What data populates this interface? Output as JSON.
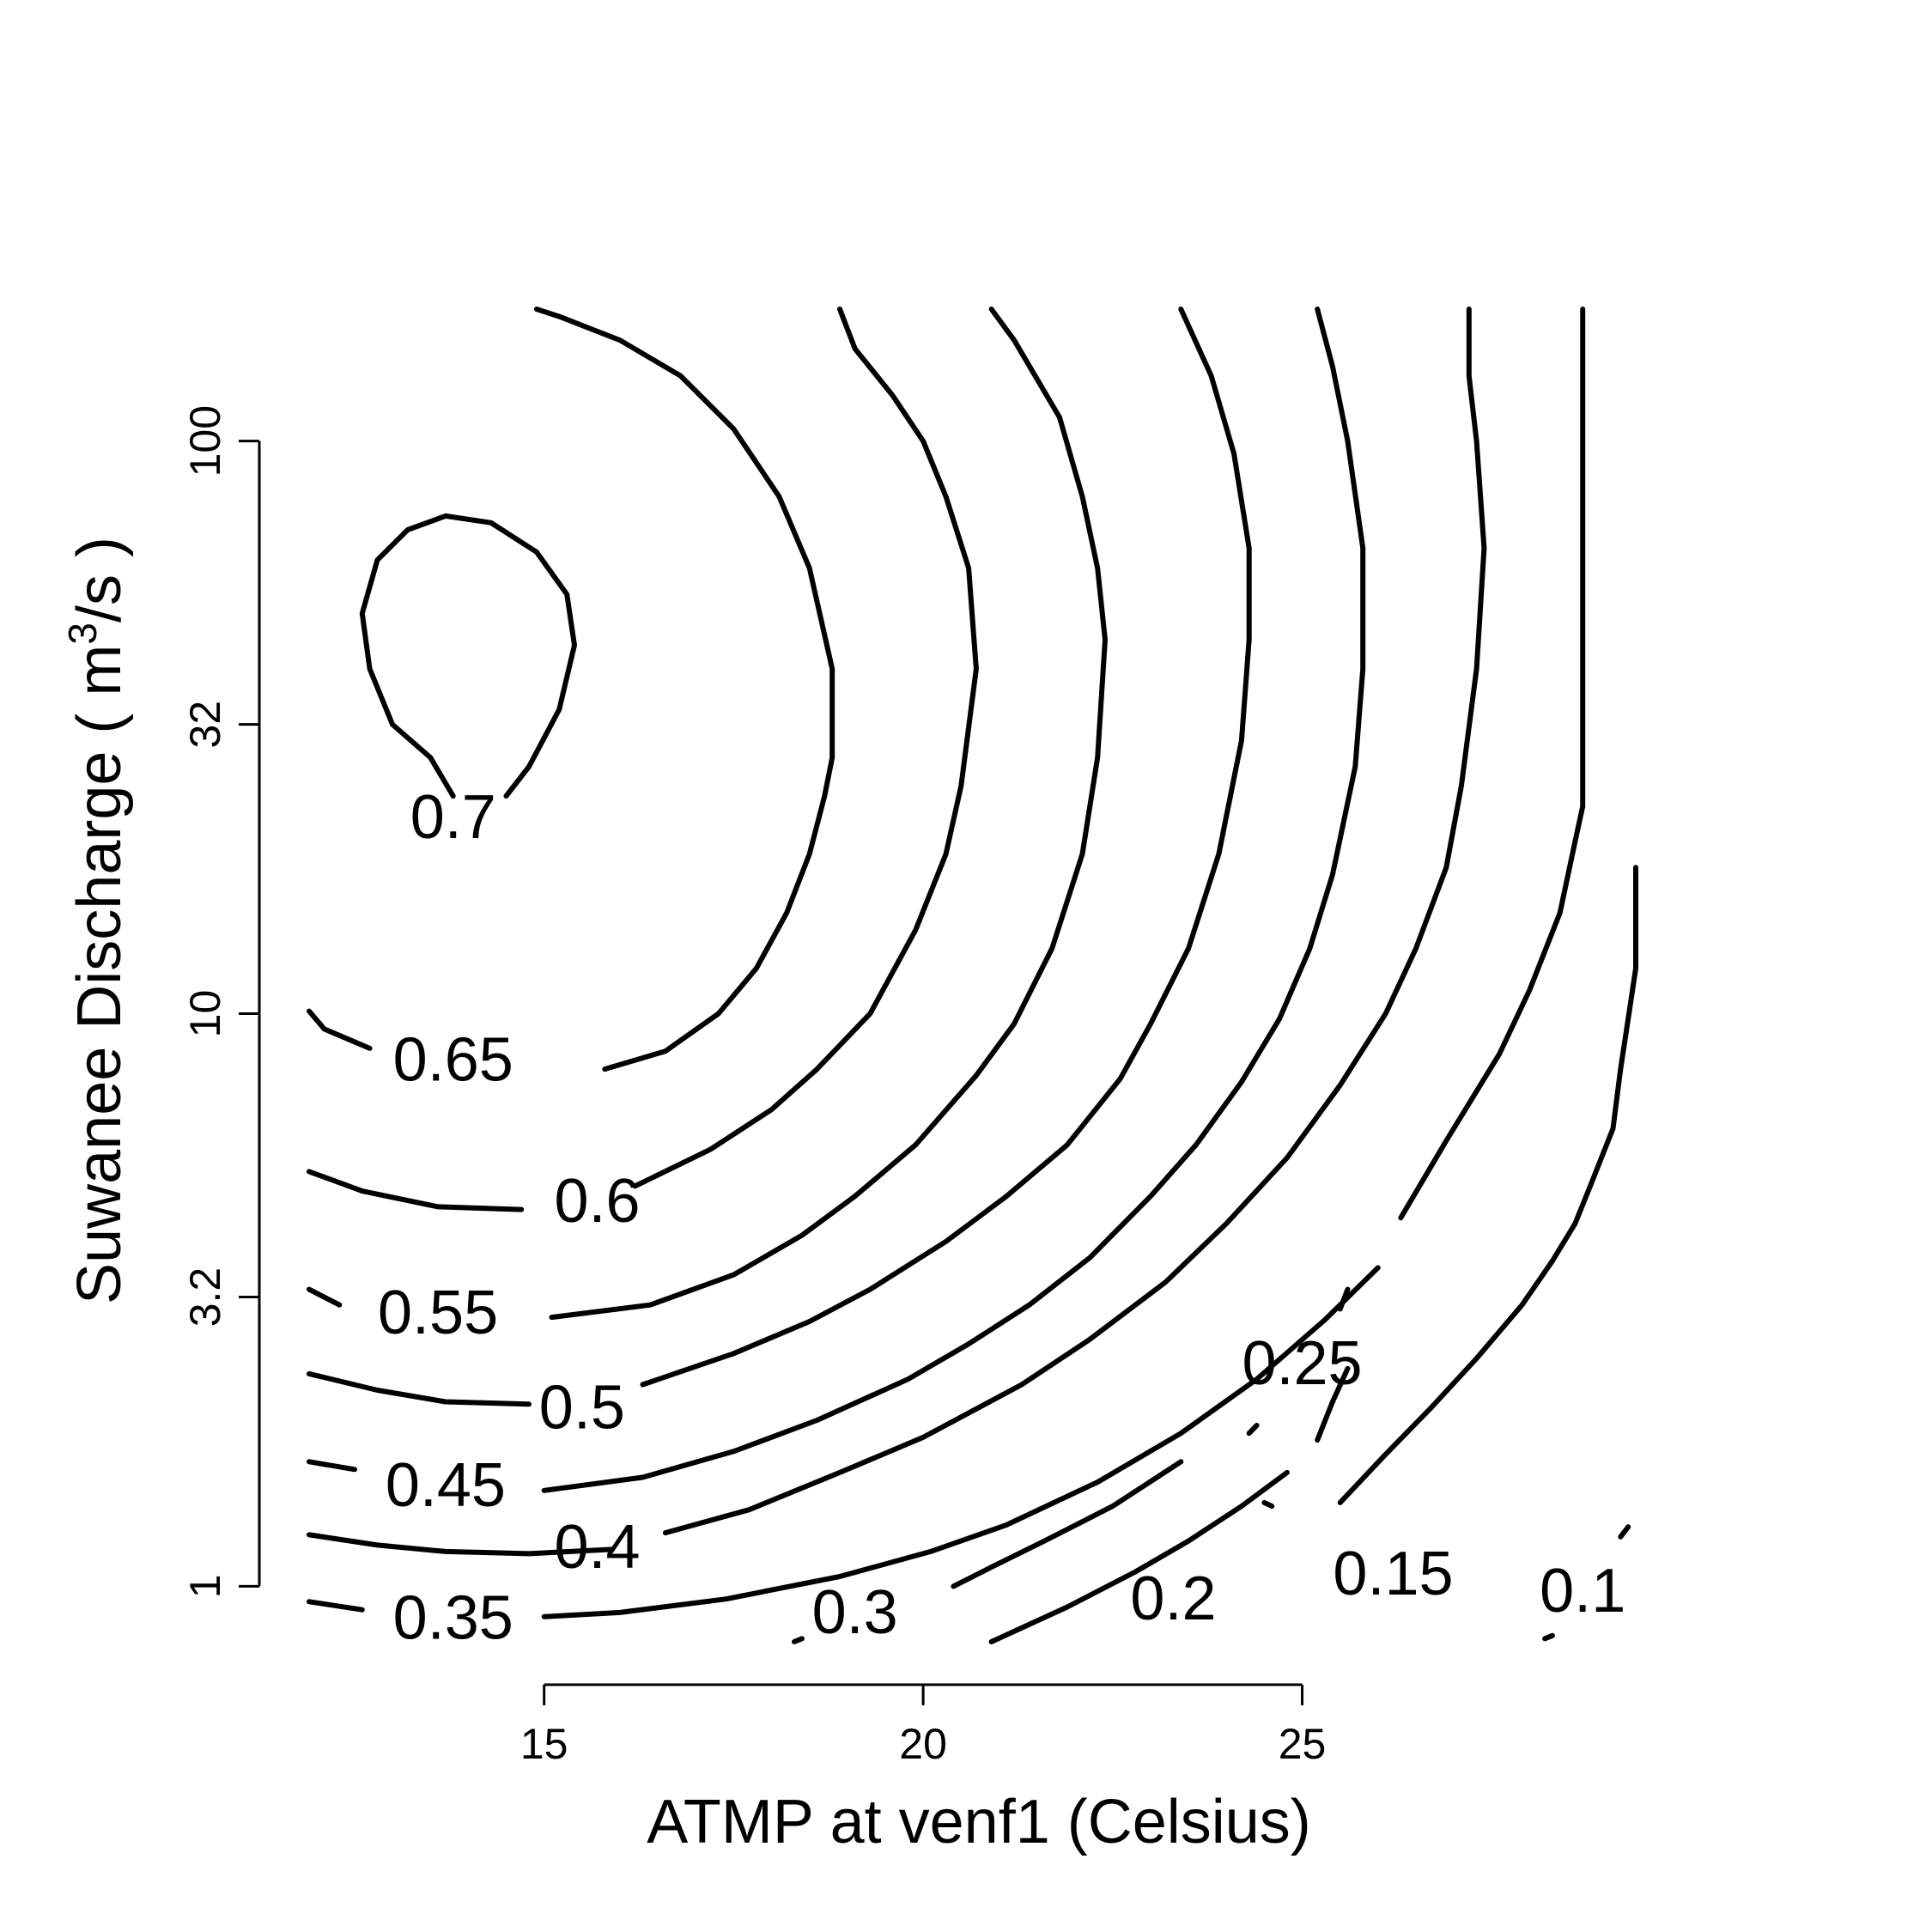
{
  "chart_data": {
    "type": "contour",
    "xlabel": "ATMP at venf1 (Celsius)",
    "ylabel": "Suwanee Discharge ( m",
    "ylabel_sup": "3",
    "ylabel_tail": "/s )",
    "xlim": [
      11.9,
      29.4
    ],
    "ylim": [
      0.8,
      170
    ],
    "y_scale": "log",
    "x_ticks": [
      {
        "value": 15,
        "label": "15"
      },
      {
        "value": 20,
        "label": "20"
      },
      {
        "value": 25,
        "label": "25"
      }
    ],
    "y_ticks": [
      {
        "value": 1,
        "label": "1"
      },
      {
        "value": 3.2,
        "label": "3.2"
      },
      {
        "value": 10,
        "label": "10"
      },
      {
        "value": 32,
        "label": "32"
      },
      {
        "value": 100,
        "label": "100"
      }
    ],
    "grid": false,
    "contours": [
      {
        "level": "0.7",
        "label": "0.7",
        "label_pos": [
          13.8,
          22
        ],
        "segments": [
          [
            [
              13.8,
              24
            ],
            [
              13.5,
              28
            ],
            [
              13.0,
              32
            ],
            [
              12.7,
              40
            ],
            [
              12.6,
              50
            ],
            [
              12.8,
              62
            ],
            [
              13.2,
              70
            ],
            [
              13.7,
              74
            ],
            [
              14.3,
              72
            ],
            [
              14.9,
              64
            ],
            [
              15.3,
              54
            ],
            [
              15.4,
              44
            ],
            [
              15.2,
              34
            ],
            [
              14.8,
              27
            ],
            [
              14.5,
              24
            ]
          ]
        ]
      },
      {
        "level": "0.65",
        "label": "0.65",
        "label_pos": [
          13.8,
          8.3
        ],
        "segments": [
          [
            [
              11.9,
              10.1
            ],
            [
              12.1,
              9.4
            ],
            [
              12.7,
              8.7
            ]
          ],
          [
            [
              15.8,
              8.0
            ],
            [
              16.6,
              8.6
            ],
            [
              17.3,
              10.0
            ],
            [
              17.8,
              12.0
            ],
            [
              18.2,
              15.0
            ],
            [
              18.5,
              19.0
            ],
            [
              18.7,
              24.0
            ],
            [
              18.8,
              28.0
            ],
            [
              18.8,
              40.0
            ],
            [
              18.5,
              60.0
            ],
            [
              18.1,
              80.0
            ],
            [
              17.5,
              105.0
            ],
            [
              16.8,
              130.0
            ],
            [
              16.0,
              150.0
            ],
            [
              15.2,
              165.0
            ],
            [
              14.9,
              170.0
            ]
          ]
        ]
      },
      {
        "level": "0.6",
        "label": "0.6",
        "label_pos": [
          15.7,
          4.7
        ],
        "segments": [
          [
            [
              11.9,
              5.3
            ],
            [
              12.6,
              4.9
            ],
            [
              13.6,
              4.6
            ],
            [
              14.7,
              4.55
            ]
          ],
          [
            [
              16.2,
              5.0
            ],
            [
              17.2,
              5.8
            ],
            [
              18.0,
              6.8
            ],
            [
              18.6,
              8.0
            ],
            [
              19.3,
              10.0
            ],
            [
              19.9,
              14.0
            ],
            [
              20.3,
              19.0
            ],
            [
              20.5,
              25.0
            ],
            [
              20.7,
              40.0
            ],
            [
              20.6,
              60.0
            ],
            [
              20.3,
              80.0
            ],
            [
              20.0,
              100.0
            ],
            [
              19.6,
              120.0
            ],
            [
              19.1,
              145.0
            ],
            [
              18.9,
              170.0
            ]
          ]
        ]
      },
      {
        "level": "0.55",
        "label": "0.55",
        "label_pos": [
          13.6,
          3.0
        ],
        "segments": [
          [
            [
              11.9,
              3.3
            ],
            [
              12.3,
              3.1
            ]
          ],
          [
            [
              15.1,
              2.95
            ],
            [
              16.4,
              3.1
            ],
            [
              17.5,
              3.5
            ],
            [
              18.4,
              4.1
            ],
            [
              19.1,
              4.8
            ],
            [
              19.9,
              5.9
            ],
            [
              20.7,
              7.8
            ],
            [
              21.2,
              9.6
            ],
            [
              21.7,
              13.0
            ],
            [
              22.1,
              19.0
            ],
            [
              22.3,
              28.0
            ],
            [
              22.4,
              45.0
            ],
            [
              22.3,
              60.0
            ],
            [
              22.1,
              80.0
            ],
            [
              21.8,
              110.0
            ],
            [
              21.2,
              150.0
            ],
            [
              20.9,
              170.0
            ]
          ]
        ]
      },
      {
        "level": "0.5",
        "label": "0.5",
        "label_pos": [
          15.5,
          2.05
        ],
        "segments": [
          [
            [
              11.9,
              2.35
            ],
            [
              12.8,
              2.2
            ],
            [
              13.7,
              2.1
            ],
            [
              14.8,
              2.08
            ]
          ],
          [
            [
              16.3,
              2.25
            ],
            [
              17.5,
              2.55
            ],
            [
              18.5,
              2.9
            ],
            [
              19.3,
              3.3
            ],
            [
              20.3,
              4.0
            ],
            [
              21.1,
              4.8
            ],
            [
              21.9,
              5.9
            ],
            [
              22.6,
              7.7
            ],
            [
              23.0,
              9.6
            ],
            [
              23.5,
              13.0
            ],
            [
              23.9,
              19.0
            ],
            [
              24.2,
              30.0
            ],
            [
              24.3,
              45.0
            ],
            [
              24.3,
              65.0
            ],
            [
              24.1,
              95.0
            ],
            [
              23.8,
              130.0
            ],
            [
              23.4,
              170.0
            ]
          ]
        ]
      },
      {
        "level": "0.45",
        "label": "0.45",
        "label_pos": [
          13.7,
          1.5
        ],
        "segments": [
          [
            [
              11.9,
              1.65
            ],
            [
              12.5,
              1.6
            ]
          ],
          [
            [
              15.0,
              1.47
            ],
            [
              16.3,
              1.55
            ],
            [
              17.5,
              1.72
            ],
            [
              18.6,
              1.95
            ],
            [
              19.8,
              2.3
            ],
            [
              20.6,
              2.65
            ],
            [
              21.4,
              3.1
            ],
            [
              22.2,
              3.75
            ],
            [
              23.0,
              4.8
            ],
            [
              23.6,
              5.9
            ],
            [
              24.2,
              7.6
            ],
            [
              24.7,
              9.8
            ],
            [
              25.1,
              13.0
            ],
            [
              25.4,
              17.5
            ],
            [
              25.7,
              27.0
            ],
            [
              25.8,
              40.0
            ],
            [
              25.8,
              65.0
            ],
            [
              25.6,
              100.0
            ],
            [
              25.4,
              135.0
            ],
            [
              25.2,
              170.0
            ]
          ]
        ]
      },
      {
        "level": "0.4",
        "label": "0.4",
        "label_pos": [
          15.7,
          1.17
        ],
        "segments": [
          [
            [
              11.9,
              1.23
            ],
            [
              12.8,
              1.18
            ],
            [
              13.7,
              1.15
            ],
            [
              14.8,
              1.14
            ],
            [
              15.9,
              1.16
            ]
          ],
          [
            [
              16.6,
              1.24
            ],
            [
              17.7,
              1.36
            ],
            [
              18.9,
              1.58
            ],
            [
              20.0,
              1.82
            ],
            [
              21.3,
              2.25
            ],
            [
              22.2,
              2.7
            ],
            [
              23.2,
              3.4
            ],
            [
              24.0,
              4.3
            ],
            [
              24.8,
              5.6
            ],
            [
              25.5,
              7.5
            ],
            [
              26.1,
              10.0
            ],
            [
              26.5,
              13.0
            ],
            [
              26.9,
              18.0
            ],
            [
              27.1,
              25.0
            ],
            [
              27.3,
              40.0
            ],
            [
              27.4,
              65.0
            ],
            [
              27.3,
              100.0
            ],
            [
              27.2,
              130.0
            ],
            [
              27.2,
              170.0
            ]
          ]
        ]
      },
      {
        "level": "0.35",
        "label": "0.35",
        "label_pos": [
          13.8,
          0.88
        ],
        "segments": [
          [
            [
              11.9,
              0.94
            ],
            [
              12.6,
              0.91
            ]
          ],
          [
            [
              15.0,
              0.885
            ],
            [
              16.0,
              0.9
            ],
            [
              17.4,
              0.95
            ],
            [
              18.9,
              1.04
            ],
            [
              20.1,
              1.15
            ],
            [
              21.1,
              1.28
            ],
            [
              22.3,
              1.52
            ],
            [
              23.4,
              1.85
            ],
            [
              24.4,
              2.3
            ],
            [
              25.3,
              2.92
            ],
            [
              26.0,
              3.6
            ]
          ],
          [
            [
              26.3,
              4.4
            ],
            [
              26.9,
              6.0
            ],
            [
              27.6,
              8.5
            ],
            [
              28.0,
              11.0
            ],
            [
              28.4,
              15.0
            ],
            [
              28.6,
              20.0
            ],
            [
              28.7,
              23.0
            ],
            [
              28.7,
              60.0
            ],
            [
              28.7,
              100.0
            ],
            [
              28.7,
              130.0
            ],
            [
              28.7,
              170.0
            ]
          ]
        ]
      },
      {
        "level": "0.3",
        "label": "0.3",
        "label_pos": [
          19.1,
          0.9
        ],
        "segments": [
          [
            [
              18.3,
              0.8
            ],
            [
              18.4,
              0.81
            ]
          ],
          [
            [
              20.4,
              1.0
            ],
            [
              20.9,
              1.08
            ],
            [
              21.6,
              1.2
            ],
            [
              22.5,
              1.38
            ],
            [
              23.4,
              1.65
            ]
          ]
        ]
      },
      {
        "level": "0.25",
        "label": "0.25",
        "label_pos": [
          25.0,
          2.45
        ],
        "segments": [
          [
            [
              24.3,
              1.85
            ],
            [
              24.4,
              1.91
            ]
          ],
          [
            [
              25.5,
              3.05
            ],
            [
              25.6,
              3.3
            ]
          ]
        ]
      },
      {
        "level": "0.2",
        "label": "0.2",
        "label_pos": [
          23.3,
          0.95
        ],
        "segments": [
          [
            [
              20.9,
              0.8
            ],
            [
              21.9,
              0.92
            ],
            [
              22.8,
              1.06
            ],
            [
              23.5,
              1.2
            ],
            [
              24.2,
              1.38
            ],
            [
              24.8,
              1.58
            ]
          ],
          [
            [
              24.6,
              1.38
            ],
            [
              24.5,
              1.4
            ]
          ],
          [
            [
              25.2,
              1.8
            ],
            [
              25.4,
              2.1
            ],
            [
              25.6,
              2.4
            ]
          ]
        ]
      },
      {
        "level": "0.15",
        "label": "0.15",
        "label_pos": [
          26.2,
          1.05
        ],
        "segments": [
          [
            [
              25.5,
              1.4
            ],
            [
              26.1,
              1.7
            ],
            [
              26.7,
              2.05
            ],
            [
              27.3,
              2.5
            ],
            [
              27.9,
              3.1
            ],
            [
              28.3,
              3.7
            ],
            [
              28.6,
              4.3
            ],
            [
              28.8,
              5.0
            ],
            [
              29.1,
              6.3
            ],
            [
              29.2,
              8.0
            ],
            [
              29.3,
              9.8
            ],
            [
              29.4,
              12.0
            ],
            [
              29.4,
              15.0
            ],
            [
              29.4,
              18.0
            ]
          ]
        ]
      },
      {
        "level": "0.1",
        "label": "0.1",
        "label_pos": [
          28.7,
          0.98
        ],
        "segments": [
          [
            [
              28.2,
              0.81
            ],
            [
              28.3,
              0.82
            ]
          ],
          [
            [
              29.2,
              1.22
            ],
            [
              29.3,
              1.27
            ]
          ]
        ]
      }
    ]
  }
}
